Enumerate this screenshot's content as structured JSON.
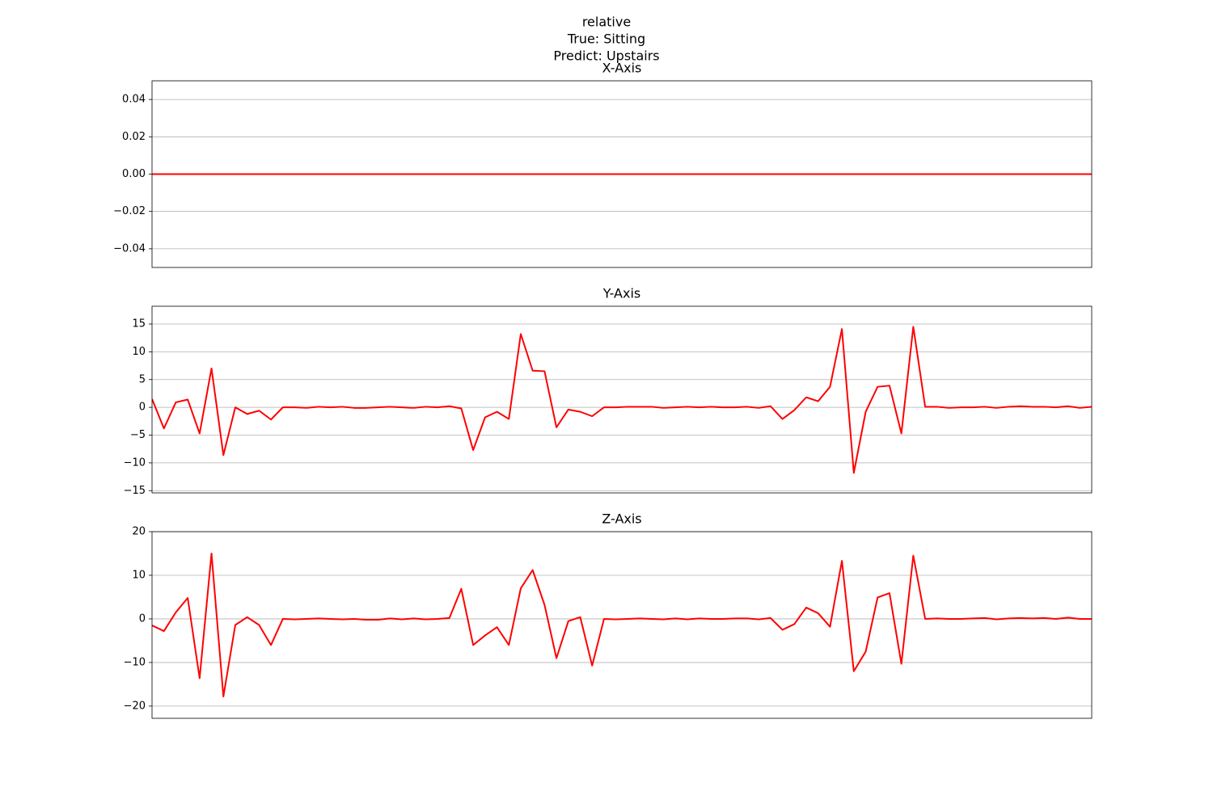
{
  "title_lines": [
    "relative",
    "True: Sitting",
    "Predict: Upstairs"
  ],
  "chart_data": [
    {
      "type": "line",
      "title": "X-Axis",
      "x": [
        0,
        1,
        2,
        3,
        4,
        5,
        6,
        7,
        8,
        9,
        10,
        11,
        12,
        13,
        14,
        15,
        16,
        17,
        18,
        19,
        20,
        21,
        22,
        23,
        24,
        25,
        26,
        27,
        28,
        29,
        30,
        31,
        32,
        33,
        34,
        35,
        36,
        37,
        38,
        39,
        40,
        41,
        42,
        43,
        44,
        45,
        46,
        47,
        48,
        49,
        50,
        51,
        52,
        53,
        54,
        55,
        56,
        57,
        58,
        59,
        60,
        61,
        62,
        63,
        64,
        65,
        66,
        67,
        68,
        69,
        70,
        71,
        72,
        73,
        74,
        75,
        76,
        77,
        78,
        79
      ],
      "xlim": [
        0,
        79
      ],
      "series": [
        {
          "color": "#ff0000",
          "values": [
            0,
            0,
            0,
            0,
            0,
            0,
            0,
            0,
            0,
            0,
            0,
            0,
            0,
            0,
            0,
            0,
            0,
            0,
            0,
            0,
            0,
            0,
            0,
            0,
            0,
            0,
            0,
            0,
            0,
            0,
            0,
            0,
            0,
            0,
            0,
            0,
            0,
            0,
            0,
            0,
            0,
            0,
            0,
            0,
            0,
            0,
            0,
            0,
            0,
            0,
            0,
            0,
            0,
            0,
            0,
            0,
            0,
            0,
            0,
            0,
            0,
            0,
            0,
            0,
            0,
            0,
            0,
            0,
            0,
            0,
            0,
            0,
            0,
            0,
            0,
            0,
            0,
            0,
            0,
            0
          ]
        }
      ],
      "ylim": [
        -0.05,
        0.05
      ],
      "yticks": [
        {
          "value": -0.04,
          "label": "−0.04"
        },
        {
          "value": -0.02,
          "label": "−0.02"
        },
        {
          "value": 0,
          "label": "0.00"
        },
        {
          "value": 0.02,
          "label": "0.02"
        },
        {
          "value": 0.04,
          "label": "0.04"
        }
      ],
      "grid": true
    },
    {
      "type": "line",
      "title": "Y-Axis",
      "x": [
        0,
        1,
        2,
        3,
        4,
        5,
        6,
        7,
        8,
        9,
        10,
        11,
        12,
        13,
        14,
        15,
        16,
        17,
        18,
        19,
        20,
        21,
        22,
        23,
        24,
        25,
        26,
        27,
        28,
        29,
        30,
        31,
        32,
        33,
        34,
        35,
        36,
        37,
        38,
        39,
        40,
        41,
        42,
        43,
        44,
        45,
        46,
        47,
        48,
        49,
        50,
        51,
        52,
        53,
        54,
        55,
        56,
        57,
        58,
        59,
        60,
        61,
        62,
        63,
        64,
        65,
        66,
        67,
        68,
        69,
        70,
        71,
        72,
        73,
        74,
        75,
        76,
        77,
        78,
        79
      ],
      "xlim": [
        0,
        79
      ],
      "series": [
        {
          "color": "#ff0000",
          "values": [
            1.5,
            -3.8,
            0.9,
            1.4,
            -4.7,
            7.0,
            -8.6,
            0,
            -1.2,
            -0.6,
            -2.2,
            0,
            0,
            -0.1,
            0.1,
            0,
            0.1,
            -0.1,
            -0.1,
            0,
            0.1,
            0,
            -0.1,
            0.1,
            0,
            0.2,
            -0.2,
            -7.7,
            -1.8,
            -0.8,
            -2.1,
            13.2,
            6.6,
            6.5,
            -3.6,
            -0.4,
            -0.8,
            -1.6,
            0,
            0,
            0.1,
            0.1,
            0.1,
            -0.1,
            0,
            0.1,
            0,
            0.1,
            0,
            0,
            0.1,
            -0.1,
            0.2,
            -2.1,
            -0.5,
            1.8,
            1.1,
            3.7,
            14.1,
            -11.8,
            -0.8,
            3.7,
            3.9,
            -4.7,
            14.5,
            0.1,
            0.1,
            -0.1,
            0,
            0,
            0.1,
            -0.1,
            0.1,
            0.2,
            0.1,
            0.1,
            0,
            0.2,
            -0.1,
            0.1
          ]
        }
      ],
      "ylim": [
        -15.4,
        18.2
      ],
      "yticks": [
        {
          "value": -15,
          "label": "−15"
        },
        {
          "value": -10,
          "label": "−10"
        },
        {
          "value": -5,
          "label": "−5"
        },
        0,
        5,
        10,
        15
      ],
      "grid": true
    },
    {
      "type": "line",
      "title": "Z-Axis",
      "x": [
        0,
        1,
        2,
        3,
        4,
        5,
        6,
        7,
        8,
        9,
        10,
        11,
        12,
        13,
        14,
        15,
        16,
        17,
        18,
        19,
        20,
        21,
        22,
        23,
        24,
        25,
        26,
        27,
        28,
        29,
        30,
        31,
        32,
        33,
        34,
        35,
        36,
        37,
        38,
        39,
        40,
        41,
        42,
        43,
        44,
        45,
        46,
        47,
        48,
        49,
        50,
        51,
        52,
        53,
        54,
        55,
        56,
        57,
        58,
        59,
        60,
        61,
        62,
        63,
        64,
        65,
        66,
        67,
        68,
        69,
        70,
        71,
        72,
        73,
        74,
        75,
        76,
        77,
        78,
        79
      ],
      "xlim": [
        0,
        79
      ],
      "series": [
        {
          "color": "#ff0000",
          "values": [
            -1.5,
            -2.8,
            1.5,
            4.8,
            -13.6,
            15.0,
            -17.8,
            -1.4,
            0.4,
            -1.4,
            -6.0,
            0,
            -0.1,
            0,
            0.1,
            0,
            -0.1,
            0,
            -0.2,
            -0.2,
            0.1,
            -0.1,
            0.1,
            -0.1,
            0,
            0.2,
            6.9,
            -6.0,
            -3.8,
            -1.9,
            -6.0,
            7.0,
            11.2,
            3.2,
            -9.0,
            -0.5,
            0.4,
            -10.7,
            0,
            -0.1,
            0,
            0.1,
            0,
            -0.1,
            0.1,
            -0.1,
            0.1,
            0,
            0,
            0.1,
            0.1,
            -0.1,
            0.2,
            -2.5,
            -1.2,
            2.6,
            1.3,
            -1.8,
            13.3,
            -12.0,
            -7.5,
            4.9,
            5.9,
            -10.3,
            14.5,
            0,
            0.1,
            0,
            0,
            0.1,
            0.2,
            -0.1,
            0.1,
            0.2,
            0.1,
            0.2,
            0,
            0.3,
            0,
            0
          ]
        }
      ],
      "ylim": [
        -22.8,
        20
      ],
      "yticks": [
        {
          "value": -20,
          "label": "−20"
        },
        {
          "value": -10,
          "label": "−10"
        },
        0,
        10,
        20
      ],
      "grid": true
    }
  ]
}
